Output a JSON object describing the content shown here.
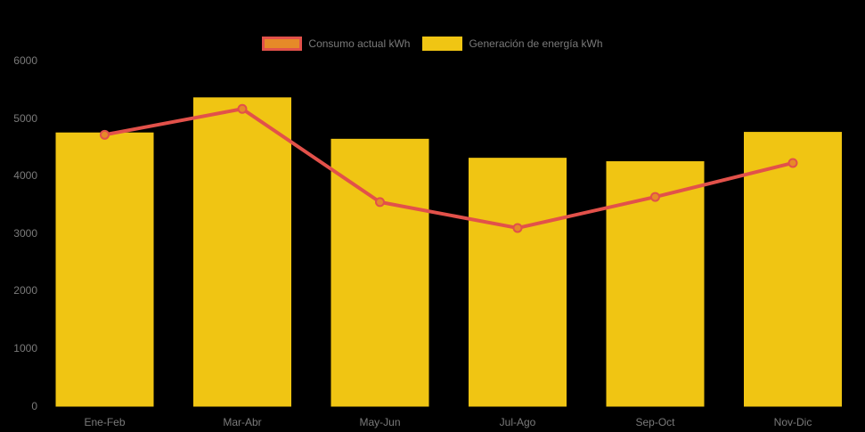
{
  "chart_data": {
    "type": "bar",
    "subtype": "bar-with-line-overlay",
    "title": "",
    "categories": [
      "Ene-Feb",
      "Mar-Abr",
      "May-Jun",
      "Jul-Ago",
      "Sep-Oct",
      "Nov-Dic"
    ],
    "series": [
      {
        "name": "Consumo actual kWh",
        "type": "line",
        "values": [
          4710,
          5160,
          3540,
          3090,
          3630,
          4220
        ],
        "line_color": "#e2514a",
        "marker_color": "#e68a28"
      },
      {
        "name": "Generación de energía kWh",
        "type": "bar",
        "values": [
          4750,
          5360,
          4640,
          4310,
          4250,
          4760
        ],
        "bar_color": "#f0c513"
      }
    ],
    "xlabel": "",
    "ylabel": "",
    "ylim": [
      0,
      6000
    ],
    "yticks": [
      0,
      1000,
      2000,
      3000,
      4000,
      5000,
      6000
    ],
    "grid": false,
    "legend_position": "top-center"
  },
  "legend": {
    "consumo_label": "Consumo actual kWh",
    "generacion_label": "Generación de energía kWh"
  },
  "colors": {
    "background": "#000000",
    "text": "#7a7a7a",
    "bar": "#f0c513",
    "line": "#e2514a",
    "marker": "#e68a28"
  }
}
